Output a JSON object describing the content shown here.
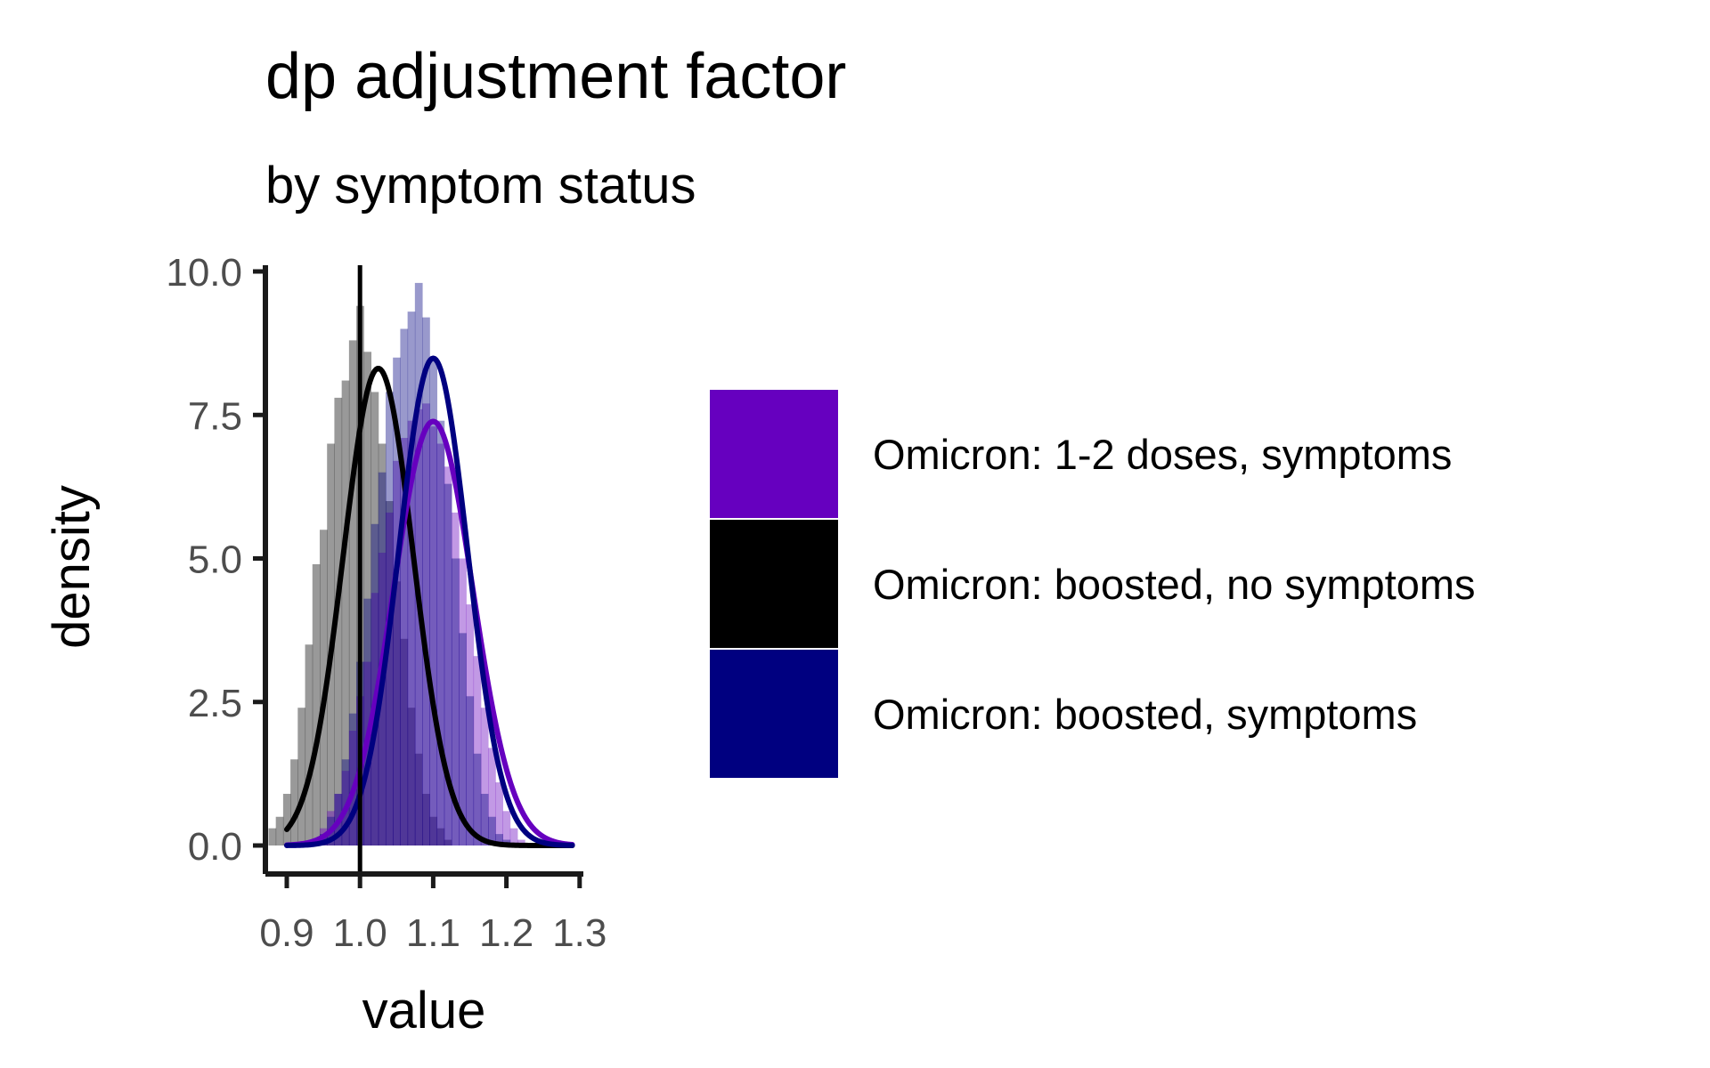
{
  "chart_data": {
    "type": "area",
    "title": "dp adjustment factor",
    "subtitle": "by symptom status",
    "xlabel": "value",
    "ylabel": "density",
    "xlim": [
      0.875,
      1.3
    ],
    "ylim": [
      0,
      10
    ],
    "x_ticks": [
      {
        "value": 0.9,
        "label": "0.9"
      },
      {
        "value": 1.0,
        "label": "1.0"
      },
      {
        "value": 1.1,
        "label": "1.1"
      },
      {
        "value": 1.2,
        "label": "1.2"
      },
      {
        "value": 1.3,
        "label": "1.3"
      }
    ],
    "y_ticks": [
      {
        "value": 0,
        "label": "0.0"
      },
      {
        "value": 2.5,
        "label": "2.5"
      },
      {
        "value": 5,
        "label": "5.0"
      },
      {
        "value": 7.5,
        "label": "7.5"
      },
      {
        "value": 10,
        "label": "10.0"
      }
    ],
    "reference_line_x": 1.0,
    "grid": false,
    "legend_position": "right",
    "histogram_x": [
      0.88,
      0.89,
      0.9,
      0.91,
      0.92,
      0.93,
      0.94,
      0.95,
      0.96,
      0.97,
      0.98,
      0.99,
      1.0,
      1.01,
      1.02,
      1.03,
      1.04,
      1.05,
      1.06,
      1.07,
      1.08,
      1.09,
      1.1,
      1.11,
      1.12,
      1.13,
      1.14,
      1.15,
      1.16,
      1.17,
      1.18,
      1.19,
      1.2,
      1.21,
      1.22
    ],
    "series": [
      {
        "name": "Omicron: 1-2 doses, symptoms",
        "color": "#6600bf",
        "density_mean": 1.1,
        "density_sd": 0.054,
        "histogram": [
          0,
          0,
          0,
          0,
          0,
          0,
          0.1,
          0.3,
          0.6,
          0.9,
          1.3,
          2.0,
          2.6,
          3.2,
          4.4,
          5.1,
          5.8,
          6.7,
          7.1,
          7.4,
          7.6,
          7.7,
          7.3,
          7.0,
          6.6,
          5.8,
          5.0,
          4.2,
          3.3,
          2.4,
          1.7,
          1.1,
          0.6,
          0.3,
          0.1
        ]
      },
      {
        "name": "Omicron: boosted, no symptoms",
        "color": "#000000",
        "density_mean": 1.025,
        "density_sd": 0.048,
        "histogram": [
          0.3,
          0.5,
          0.9,
          1.5,
          2.4,
          3.5,
          4.9,
          5.5,
          7.0,
          7.8,
          8.1,
          8.8,
          9.4,
          8.6,
          7.9,
          7.0,
          6.0,
          4.6,
          3.6,
          2.4,
          1.6,
          0.9,
          0.5,
          0.3,
          0.1,
          0,
          0,
          0,
          0,
          0,
          0,
          0,
          0,
          0,
          0
        ]
      },
      {
        "name": "Omicron: boosted, symptoms",
        "color": "#000080",
        "density_mean": 1.1,
        "density_sd": 0.047,
        "histogram": [
          0,
          0,
          0,
          0,
          0,
          0,
          0.1,
          0.2,
          0.5,
          0.9,
          1.5,
          2.3,
          3.2,
          4.3,
          5.6,
          6.5,
          7.9,
          8.5,
          9.0,
          9.3,
          9.8,
          9.2,
          8.5,
          7.4,
          6.3,
          5.0,
          3.7,
          2.6,
          1.6,
          0.9,
          0.5,
          0.2,
          0.1,
          0,
          0
        ]
      }
    ]
  }
}
